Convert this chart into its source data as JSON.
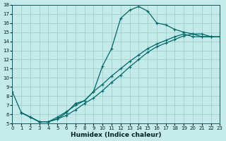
{
  "xlabel": "Humidex (Indice chaleur)",
  "bg_color": "#c5eaea",
  "grid_color": "#9fcfcf",
  "line_color": "#006868",
  "xlim": [
    0,
    23
  ],
  "ylim": [
    5,
    18
  ],
  "xticks": [
    0,
    1,
    2,
    3,
    4,
    5,
    6,
    7,
    8,
    9,
    10,
    11,
    12,
    13,
    14,
    15,
    16,
    17,
    18,
    19,
    20,
    21,
    22,
    23
  ],
  "yticks": [
    5,
    6,
    7,
    8,
    9,
    10,
    11,
    12,
    13,
    14,
    15,
    16,
    17,
    18
  ],
  "curve1_x": [
    0,
    1,
    2,
    3,
    4,
    5,
    6,
    7,
    8,
    9,
    10,
    11,
    12,
    13,
    14,
    15,
    16,
    17,
    18,
    19,
    20,
    21,
    22
  ],
  "curve1_y": [
    8.5,
    6.2,
    5.7,
    5.2,
    5.2,
    5.5,
    6.2,
    7.2,
    7.5,
    8.5,
    11.3,
    13.2,
    16.5,
    17.4,
    17.8,
    17.3,
    16.0,
    15.8,
    15.3,
    15.0,
    14.8,
    14.8,
    14.5
  ],
  "line2_x": [
    1,
    2,
    3,
    4,
    5,
    6,
    7,
    8,
    9,
    10,
    11,
    12,
    13,
    14,
    15,
    16,
    17,
    18,
    19,
    20,
    21,
    22,
    23
  ],
  "line2_y": [
    6.2,
    5.7,
    5.2,
    5.2,
    5.7,
    6.3,
    7.0,
    7.5,
    8.5,
    9.3,
    10.2,
    11.0,
    11.8,
    12.5,
    13.2,
    13.7,
    14.1,
    14.5,
    14.8,
    14.5,
    14.5,
    14.5,
    14.5
  ],
  "line3_x": [
    1,
    2,
    3,
    4,
    5,
    6,
    7,
    8,
    9,
    10,
    11,
    12,
    13,
    14,
    15,
    16,
    17,
    18,
    19,
    20,
    21,
    22,
    23
  ],
  "line3_y": [
    6.2,
    5.7,
    5.2,
    5.2,
    5.5,
    5.9,
    6.5,
    7.2,
    7.8,
    8.6,
    9.5,
    10.3,
    11.2,
    12.0,
    12.8,
    13.4,
    13.8,
    14.2,
    14.6,
    14.8,
    14.5,
    14.5,
    14.5
  ]
}
